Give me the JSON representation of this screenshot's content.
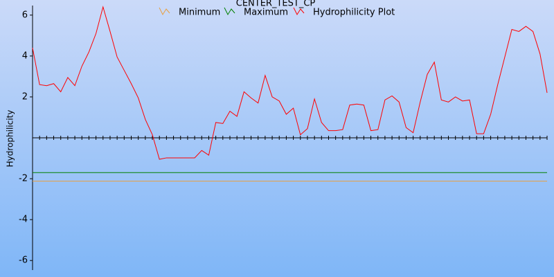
{
  "chart_data": {
    "type": "line",
    "title": "CENTER_TEST_CP",
    "y_label": "Hydrophilicity",
    "ylim": [
      -6.4,
      6.4
    ],
    "yticks": [
      -6,
      -4,
      -2,
      2,
      4,
      6
    ],
    "series": [
      {
        "name": "Minimum",
        "color": "#e8a040",
        "values": [
          -2.12
        ]
      },
      {
        "name": "Maximum",
        "color": "#008000",
        "values": [
          -1.7
        ]
      },
      {
        "name": "Hydrophilicity Plot",
        "color": "#ff0000",
        "values": [
          4.4,
          2.6,
          2.55,
          2.65,
          2.25,
          2.95,
          2.55,
          3.5,
          4.2,
          5.1,
          6.4,
          5.2,
          3.95,
          3.3,
          2.65,
          1.95,
          0.9,
          0.15,
          -1.05,
          -0.98,
          -0.98,
          -0.98,
          -0.98,
          -0.98,
          -0.62,
          -0.85,
          0.75,
          0.7,
          1.3,
          1.05,
          2.25,
          1.95,
          1.7,
          3.05,
          2.0,
          1.8,
          1.15,
          1.45,
          0.15,
          0.45,
          1.9,
          0.75,
          0.35,
          0.35,
          0.4,
          1.6,
          1.65,
          1.6,
          0.35,
          0.4,
          1.85,
          2.05,
          1.75,
          0.5,
          0.25,
          1.75,
          3.1,
          3.7,
          1.85,
          1.75,
          2.0,
          1.8,
          1.85,
          0.2,
          0.2,
          1.15,
          2.6,
          3.95,
          5.3,
          5.2,
          5.45,
          5.2,
          4.1,
          2.2
        ]
      }
    ]
  }
}
